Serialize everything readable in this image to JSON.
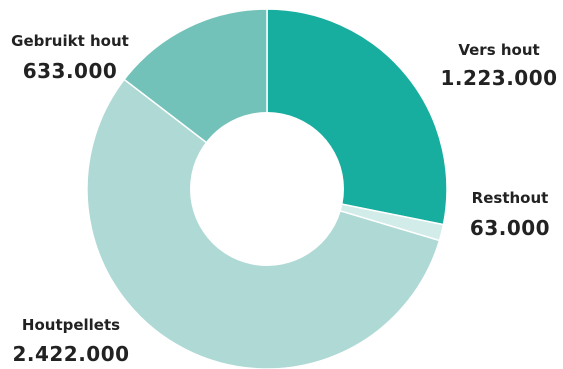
{
  "chart_data": {
    "type": "pie",
    "variant": "donut",
    "slices": [
      {
        "label": "Vers hout",
        "value": 1223000,
        "value_label": "1.223.000",
        "color": "#17ad9f"
      },
      {
        "label": "Resthout",
        "value": 63000,
        "value_label": "63.000",
        "color": "#d2ecea"
      },
      {
        "label": "Houtpellets",
        "value": 2422000,
        "value_label": "2.422.000",
        "color": "#aed9d5"
      },
      {
        "label": "Gebruikt hout",
        "value": 633000,
        "value_label": "633.000",
        "color": "#73c2b9"
      }
    ],
    "start_angle": "12 o'clock",
    "direction": "clockwise",
    "separator_color": "#ffffff"
  }
}
